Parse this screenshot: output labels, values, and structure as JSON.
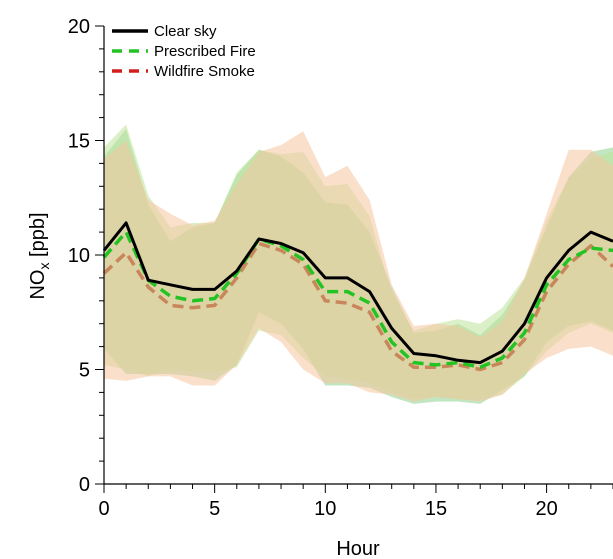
{
  "chart_data": {
    "type": "line",
    "title": "",
    "xlabel": "Hour",
    "ylabel_main": "NO",
    "ylabel_sub": "x",
    "ylabel_unit": " [ppb]",
    "xlim": [
      0,
      23
    ],
    "ylim": [
      0,
      20
    ],
    "xticks": [
      0,
      5,
      10,
      15,
      20
    ],
    "yticks": [
      0,
      5,
      10,
      15,
      20
    ],
    "grid": false,
    "legend_position": "top-left",
    "x": [
      0,
      1,
      2,
      3,
      4,
      5,
      6,
      7,
      8,
      9,
      10,
      11,
      12,
      13,
      14,
      15,
      16,
      17,
      18,
      19,
      20,
      21,
      22,
      23
    ],
    "series": [
      {
        "name": "Clear sky",
        "style": "solid",
        "color": "#000000",
        "band_color": "#8fd18f",
        "values": [
          10.2,
          11.4,
          8.9,
          8.7,
          8.5,
          8.5,
          9.3,
          10.7,
          10.5,
          10.1,
          9.0,
          9.0,
          8.4,
          6.8,
          5.7,
          5.6,
          5.4,
          5.3,
          5.8,
          7.0,
          9.0,
          10.2,
          11.0,
          10.6
        ],
        "band_upper": [
          14.3,
          15.5,
          12.2,
          10.6,
          11.2,
          11.4,
          13.5,
          14.6,
          14.3,
          13.6,
          12.3,
          12.2,
          11.0,
          8.6,
          6.6,
          6.7,
          7.0,
          6.5,
          7.4,
          8.9,
          11.2,
          13.4,
          14.5,
          14.7
        ],
        "band_lower": [
          5.9,
          4.8,
          4.8,
          4.8,
          4.7,
          4.5,
          5.2,
          7.5,
          7.0,
          5.9,
          4.3,
          4.3,
          4.2,
          3.8,
          3.5,
          3.6,
          3.6,
          3.5,
          4.1,
          4.7,
          6.2,
          6.9,
          7.1,
          6.7
        ]
      },
      {
        "name": "Prescribed Fire",
        "style": "dashed",
        "color": "#22c322",
        "band_color": "#bde39b",
        "values": [
          9.9,
          11.0,
          8.9,
          8.2,
          8.0,
          8.1,
          9.2,
          10.7,
          10.4,
          9.8,
          8.4,
          8.4,
          7.9,
          6.2,
          5.3,
          5.2,
          5.3,
          5.1,
          5.5,
          6.6,
          8.7,
          9.8,
          10.3,
          10.2
        ],
        "band_upper": [
          14.7,
          15.7,
          12.6,
          11.2,
          11.4,
          11.4,
          13.6,
          14.6,
          14.4,
          14.5,
          13.0,
          13.1,
          11.7,
          8.3,
          6.7,
          7.0,
          7.2,
          7.0,
          7.7,
          9.0,
          11.5,
          13.4,
          14.2,
          14.5
        ],
        "band_lower": [
          5.2,
          5.0,
          4.7,
          5.0,
          4.9,
          4.9,
          5.1,
          6.7,
          6.5,
          5.5,
          4.7,
          4.6,
          4.4,
          4.0,
          3.7,
          3.8,
          3.7,
          3.7,
          3.9,
          4.7,
          5.8,
          6.6,
          7.0,
          6.6
        ]
      },
      {
        "name": "Wildfire Smoke",
        "style": "dashed",
        "color": "#d41e1e",
        "line_color": "#c8875a",
        "band_color": "#f5c7a0",
        "values": [
          9.2,
          10.1,
          8.6,
          7.8,
          7.7,
          7.8,
          9.0,
          10.5,
          10.2,
          9.6,
          8.0,
          7.9,
          7.5,
          5.8,
          5.1,
          5.1,
          5.2,
          5.0,
          5.3,
          6.3,
          8.4,
          9.6,
          10.4,
          9.5
        ],
        "band_upper": [
          14.2,
          15.0,
          12.4,
          11.8,
          11.3,
          11.5,
          13.1,
          14.5,
          14.8,
          15.4,
          13.4,
          13.9,
          12.4,
          8.7,
          6.9,
          7.0,
          6.9,
          6.4,
          7.1,
          9.0,
          11.8,
          14.6,
          14.6,
          13.9
        ],
        "band_lower": [
          4.6,
          4.5,
          4.7,
          4.7,
          4.3,
          4.3,
          5.2,
          6.8,
          6.2,
          5.0,
          4.4,
          4.4,
          4.0,
          3.9,
          3.6,
          3.8,
          3.7,
          3.6,
          3.9,
          4.8,
          5.5,
          5.9,
          6.0,
          5.6
        ]
      }
    ]
  }
}
